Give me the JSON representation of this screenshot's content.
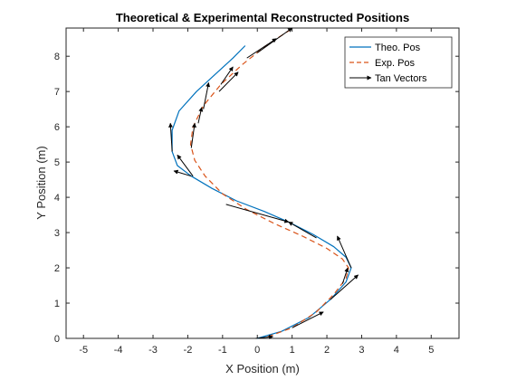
{
  "chart_data": {
    "type": "line",
    "title": "Theoretical & Experimental Reconstructed Positions",
    "xlabel": "X Position (m)",
    "ylabel": "Y Position (m)",
    "xlim": [
      -5.5,
      5.8
    ],
    "ylim": [
      0,
      8.8
    ],
    "xticks": [
      "-5",
      "-4",
      "-3",
      "-2",
      "-1",
      "0",
      "1",
      "2",
      "3",
      "4",
      "5"
    ],
    "yticks": [
      "0",
      "1",
      "2",
      "3",
      "4",
      "5",
      "6",
      "7",
      "8"
    ],
    "grid": false,
    "legend_position": "top-right",
    "legend": [
      "Theo. Pos",
      "Exp. Pos",
      "Tan Vectors"
    ],
    "series": [
      {
        "name": "Theo. Pos",
        "color": "#0072bd",
        "style": "solid",
        "x": [
          0.0,
          0.7,
          1.5,
          2.1,
          2.55,
          2.7,
          2.55,
          2.2,
          1.6,
          0.9,
          0.2,
          -0.6,
          -1.3,
          -1.9,
          -2.3,
          -2.45,
          -2.45,
          -2.25,
          -1.75,
          -1.2,
          -0.7,
          -0.35
        ],
        "y": [
          0.0,
          0.2,
          0.6,
          1.1,
          1.6,
          2.0,
          2.3,
          2.6,
          2.95,
          3.3,
          3.6,
          3.9,
          4.25,
          4.6,
          4.9,
          5.3,
          5.9,
          6.45,
          7.0,
          7.5,
          7.95,
          8.3
        ]
      },
      {
        "name": "Exp. Pos",
        "color": "#d95319",
        "style": "dashed",
        "x": [
          0.3,
          1.0,
          1.7,
          2.2,
          2.55,
          2.62,
          2.45,
          2.0,
          1.3,
          0.5,
          -0.3,
          -1.0,
          -1.5,
          -1.8,
          -1.92,
          -1.85,
          -1.55,
          -1.05,
          -0.45,
          0.25,
          0.95
        ],
        "y": [
          0.05,
          0.3,
          0.75,
          1.25,
          1.7,
          2.0,
          2.25,
          2.55,
          2.9,
          3.25,
          3.65,
          4.1,
          4.6,
          5.05,
          5.5,
          6.0,
          6.6,
          7.2,
          7.75,
          8.3,
          8.75
        ]
      }
    ],
    "tan_vectors": {
      "name": "Tan Vectors",
      "color": "#000000",
      "segments": [
        {
          "x0": -0.05,
          "y0": 0.0,
          "x1": 0.45,
          "y1": 0.05
        },
        {
          "x0": 1.0,
          "y0": 0.3,
          "x1": 1.9,
          "y1": 0.75
        },
        {
          "x0": 2.1,
          "y0": 1.1,
          "x1": 2.9,
          "y1": 1.8
        },
        {
          "x0": 2.45,
          "y0": 1.55,
          "x1": 2.6,
          "y1": 2.0
        },
        {
          "x0": 2.7,
          "y0": 2.0,
          "x1": 2.3,
          "y1": 2.9
        },
        {
          "x0": 1.7,
          "y0": 2.85,
          "x1": 0.9,
          "y1": 3.3
        },
        {
          "x0": -0.9,
          "y0": 3.8,
          "x1": 0.9,
          "y1": 3.3
        },
        {
          "x0": -1.9,
          "y0": 4.6,
          "x1": -2.4,
          "y1": 4.75
        },
        {
          "x0": -1.85,
          "y0": 4.6,
          "x1": -2.3,
          "y1": 5.2
        },
        {
          "x0": -2.45,
          "y0": 5.3,
          "x1": -2.5,
          "y1": 6.1
        },
        {
          "x0": -1.9,
          "y0": 5.4,
          "x1": -1.8,
          "y1": 6.1
        },
        {
          "x0": -1.7,
          "y0": 6.1,
          "x1": -1.6,
          "y1": 6.55
        },
        {
          "x0": -1.55,
          "y0": 6.5,
          "x1": -1.4,
          "y1": 7.25
        },
        {
          "x0": -1.1,
          "y0": 7.0,
          "x1": -0.55,
          "y1": 7.55
        },
        {
          "x0": -1.05,
          "y0": 7.2,
          "x1": -0.7,
          "y1": 7.7
        },
        {
          "x0": -0.3,
          "y0": 7.95,
          "x1": 0.55,
          "y1": 8.5
        },
        {
          "x0": 0.0,
          "y0": 8.1,
          "x1": 1.0,
          "y1": 8.8
        }
      ]
    }
  }
}
